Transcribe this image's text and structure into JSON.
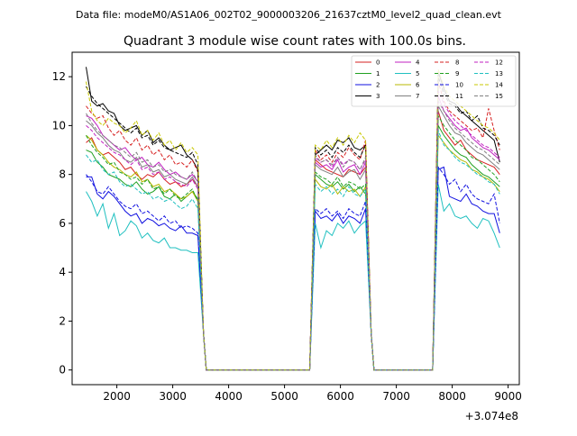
{
  "chart_data": {
    "type": "line",
    "suptitle": "Data file: modeM0/AS1A06_002T02_9000003206_21637cztM0_level2_quad_clean.evt",
    "title": "Quadrant 3 module wise count rates with 100.0s bins.",
    "xlabel": "",
    "ylabel": "",
    "x_offset_label": "+3.074e8",
    "xlim": [
      1200,
      9200
    ],
    "ylim": [
      -0.6,
      13.0
    ],
    "x_ticks": [
      2000,
      3000,
      4000,
      5000,
      6000,
      7000,
      8000,
      9000
    ],
    "x_tick_labels": [
      "2000",
      "3000",
      "4000",
      "5000",
      "6000",
      "7000",
      "8000",
      "9000"
    ],
    "y_ticks": [
      0,
      2,
      4,
      6,
      8,
      10,
      12
    ],
    "y_tick_labels": [
      "0",
      "2",
      "4",
      "6",
      "8",
      "10",
      "12"
    ],
    "grid": false,
    "legend_position": "top-right",
    "legend_columns": 4,
    "segment_starts": [
      1450,
      5550,
      7750
    ],
    "segment_ends": [
      3450,
      6450,
      8850
    ],
    "gap_level": 0,
    "series": [
      {
        "name": "0",
        "color": "#d62020",
        "dash": "solid",
        "seg1": [
          9.3,
          9.5,
          9.0,
          8.8,
          8.9,
          8.7,
          8.5,
          8.2,
          8.3,
          8.0,
          7.8,
          8.0,
          7.9,
          8.1,
          7.8,
          7.6,
          7.7,
          7.5,
          7.6,
          7.8,
          7.5
        ],
        "seg2": [
          8.6,
          8.4,
          8.2,
          8.1,
          8.0,
          7.9,
          8.2,
          8.1,
          8.0,
          8.3
        ],
        "seg3": [
          10.6,
          9.8,
          9.5,
          9.2,
          9.4,
          9.0,
          8.8,
          8.6,
          8.5,
          8.4,
          8.3,
          8.0
        ]
      },
      {
        "name": "1",
        "color": "#20a020",
        "dash": "solid",
        "seg1": [
          9.0,
          8.9,
          8.5,
          8.3,
          8.0,
          7.9,
          7.8,
          7.6,
          7.5,
          7.7,
          7.4,
          7.2,
          7.3,
          7.5,
          7.1,
          7.0,
          7.2,
          6.9,
          7.1,
          7.3,
          7.0
        ],
        "seg2": [
          8.0,
          7.8,
          7.6,
          7.5,
          7.7,
          7.4,
          7.6,
          7.3,
          7.5,
          7.2
        ],
        "seg3": [
          10.0,
          9.6,
          9.3,
          9.0,
          8.8,
          8.7,
          8.4,
          8.2,
          8.0,
          7.9,
          7.7,
          7.5
        ]
      },
      {
        "name": "2",
        "color": "#1010e0",
        "dash": "solid",
        "seg1": [
          7.9,
          7.9,
          7.2,
          7.0,
          7.3,
          7.1,
          6.8,
          6.5,
          6.3,
          6.4,
          6.0,
          6.2,
          6.1,
          5.9,
          6.0,
          5.8,
          5.7,
          5.9,
          5.6,
          5.6,
          5.5
        ],
        "seg2": [
          6.5,
          6.2,
          6.3,
          6.1,
          6.4,
          6.0,
          6.3,
          6.2,
          6.0,
          6.6
        ],
        "seg3": [
          8.2,
          8.3,
          7.1,
          7.0,
          6.9,
          7.2,
          6.8,
          6.7,
          6.5,
          6.4,
          6.4,
          5.6
        ]
      },
      {
        "name": "3",
        "color": "#000000",
        "dash": "solid",
        "seg1": [
          12.4,
          11.0,
          10.8,
          10.9,
          10.6,
          10.5,
          10.0,
          9.8,
          9.9,
          10.0,
          9.6,
          9.8,
          9.3,
          9.5,
          9.2,
          9.0,
          9.1,
          9.2,
          8.8,
          8.6,
          8.2
        ],
        "seg2": [
          8.8,
          9.0,
          9.2,
          9.0,
          9.4,
          9.3,
          9.5,
          9.1,
          9.0,
          9.2
        ],
        "seg3": [
          12.2,
          11.5,
          11.0,
          10.9,
          10.6,
          10.4,
          10.2,
          10.0,
          9.8,
          9.6,
          9.4,
          8.5
        ]
      },
      {
        "name": "4",
        "color": "#c020c0",
        "dash": "solid",
        "seg1": [
          10.4,
          10.3,
          10.0,
          9.6,
          9.4,
          9.2,
          9.0,
          9.1,
          8.8,
          8.6,
          8.7,
          8.4,
          8.3,
          8.5,
          8.2,
          8.0,
          8.1,
          7.9,
          7.8,
          8.0,
          7.7
        ],
        "seg2": [
          8.5,
          8.3,
          8.4,
          8.2,
          8.6,
          8.1,
          8.3,
          8.4,
          8.0,
          8.5
        ],
        "seg3": [
          11.2,
          10.6,
          10.3,
          10.0,
          9.8,
          9.9,
          9.5,
          9.3,
          9.1,
          9.0,
          8.8,
          8.6
        ]
      },
      {
        "name": "5",
        "color": "#20c0c0",
        "dash": "solid",
        "seg1": [
          7.3,
          6.9,
          6.3,
          6.8,
          5.8,
          6.4,
          5.5,
          5.7,
          6.1,
          5.9,
          5.4,
          5.6,
          5.3,
          5.2,
          5.4,
          5.0,
          5.0,
          4.9,
          4.9,
          4.8,
          4.8
        ],
        "seg2": [
          6.0,
          5.0,
          5.7,
          5.5,
          6.0,
          5.8,
          6.1,
          5.6,
          5.9,
          6.1
        ],
        "seg3": [
          7.6,
          6.5,
          6.8,
          6.3,
          6.2,
          6.3,
          6.0,
          5.8,
          6.2,
          6.1,
          5.6,
          5.0
        ]
      },
      {
        "name": "6",
        "color": "#b8b800",
        "dash": "solid",
        "seg1": [
          9.6,
          9.4,
          9.0,
          8.8,
          8.5,
          8.3,
          8.2,
          8.0,
          7.9,
          8.1,
          7.7,
          7.8,
          7.5,
          7.6,
          7.3,
          7.4,
          7.2,
          7.0,
          7.1,
          7.3,
          6.9
        ],
        "seg2": [
          7.8,
          7.5,
          7.4,
          7.6,
          7.2,
          7.5,
          7.3,
          7.4,
          7.1,
          7.5
        ],
        "seg3": [
          9.6,
          9.3,
          9.0,
          8.8,
          8.6,
          8.5,
          8.2,
          8.1,
          7.9,
          7.8,
          7.6,
          7.3
        ]
      },
      {
        "name": "7",
        "color": "#808080",
        "dash": "solid",
        "seg1": [
          10.2,
          10.0,
          9.7,
          9.5,
          9.2,
          9.0,
          8.9,
          8.6,
          8.5,
          8.7,
          8.3,
          8.4,
          8.1,
          8.2,
          7.9,
          8.0,
          7.8,
          7.7,
          7.6,
          7.9,
          7.5
        ],
        "seg2": [
          8.4,
          8.2,
          8.1,
          8.0,
          8.3,
          7.9,
          8.1,
          8.2,
          7.8,
          8.2
        ],
        "seg3": [
          10.8,
          10.4,
          10.0,
          9.7,
          9.6,
          9.3,
          9.1,
          8.9,
          8.8,
          8.6,
          8.4,
          8.2
        ]
      },
      {
        "name": "8",
        "color": "#d62020",
        "dash": "dashed",
        "seg1": [
          10.8,
          10.5,
          10.3,
          10.4,
          9.9,
          9.6,
          9.8,
          9.4,
          9.2,
          9.5,
          9.0,
          9.2,
          8.8,
          9.0,
          8.6,
          8.8,
          8.4,
          8.5,
          8.3,
          8.6,
          8.1
        ],
        "seg2": [
          9.0,
          8.6,
          8.8,
          8.5,
          8.9,
          8.7,
          9.1,
          8.8,
          8.6,
          9.4
        ],
        "seg3": [
          11.8,
          11.0,
          10.6,
          10.4,
          10.2,
          10.0,
          9.8,
          9.9,
          9.5,
          10.7,
          9.8,
          9.0
        ]
      },
      {
        "name": "9",
        "color": "#20a020",
        "dash": "dashed",
        "seg1": [
          9.6,
          9.2,
          8.9,
          8.7,
          8.4,
          8.5,
          8.1,
          8.0,
          7.8,
          7.9,
          7.6,
          7.8,
          7.4,
          7.5,
          7.2,
          7.4,
          7.1,
          7.0,
          7.2,
          7.4,
          6.9
        ],
        "seg2": [
          8.1,
          7.9,
          7.8,
          7.6,
          7.9,
          7.5,
          7.7,
          7.6,
          7.4,
          7.6
        ],
        "seg3": [
          10.4,
          10.0,
          9.7,
          9.4,
          9.2,
          9.0,
          8.7,
          8.6,
          8.4,
          8.2,
          8.0,
          7.7
        ]
      },
      {
        "name": "10",
        "color": "#1010e0",
        "dash": "dashed",
        "seg1": [
          8.0,
          7.7,
          7.3,
          7.2,
          7.5,
          7.2,
          6.9,
          6.7,
          6.6,
          6.8,
          6.4,
          6.5,
          6.3,
          6.1,
          6.3,
          6.0,
          6.1,
          5.8,
          5.9,
          5.8,
          5.6
        ],
        "seg2": [
          6.6,
          6.4,
          6.6,
          6.3,
          6.5,
          6.2,
          6.6,
          6.4,
          6.3,
          6.9
        ],
        "seg3": [
          8.3,
          8.0,
          7.6,
          7.8,
          7.3,
          7.6,
          7.2,
          7.0,
          6.9,
          6.8,
          7.2,
          6.0
        ]
      },
      {
        "name": "11",
        "color": "#000000",
        "dash": "dashed",
        "seg1": [
          11.6,
          11.2,
          10.9,
          10.7,
          10.5,
          10.3,
          10.1,
          9.9,
          9.7,
          9.9,
          9.5,
          9.6,
          9.2,
          9.4,
          9.1,
          9.0,
          8.9,
          8.8,
          8.7,
          8.9,
          8.4
        ],
        "seg2": [
          9.1,
          8.8,
          9.0,
          8.7,
          9.1,
          8.9,
          9.2,
          8.9,
          8.7,
          9.2
        ],
        "seg3": [
          12.0,
          11.3,
          10.9,
          10.8,
          10.5,
          10.6,
          10.2,
          10.4,
          9.9,
          9.8,
          9.6,
          9.2
        ]
      },
      {
        "name": "12",
        "color": "#c020c0",
        "dash": "dashed",
        "seg1": [
          10.0,
          9.8,
          9.5,
          9.3,
          9.1,
          8.9,
          8.8,
          8.6,
          8.4,
          8.6,
          8.2,
          8.3,
          8.0,
          8.1,
          7.8,
          7.9,
          7.7,
          7.6,
          7.5,
          7.8,
          7.4
        ],
        "seg2": [
          8.7,
          8.5,
          8.6,
          8.3,
          8.7,
          8.4,
          8.6,
          8.5,
          8.2,
          8.6
        ],
        "seg3": [
          11.4,
          10.9,
          10.5,
          10.2,
          10.0,
          9.8,
          9.6,
          9.4,
          9.2,
          9.1,
          8.9,
          8.7
        ]
      },
      {
        "name": "13",
        "color": "#20c0c0",
        "dash": "dashed",
        "seg1": [
          8.8,
          8.5,
          8.6,
          8.2,
          8.0,
          8.1,
          7.7,
          7.5,
          7.6,
          7.4,
          7.2,
          7.3,
          7.0,
          7.1,
          6.9,
          7.0,
          6.8,
          6.6,
          6.7,
          7.0,
          6.6
        ],
        "seg2": [
          7.6,
          7.3,
          7.5,
          7.2,
          7.4,
          7.1,
          7.5,
          7.2,
          7.1,
          7.4
        ],
        "seg3": [
          9.8,
          9.2,
          9.0,
          8.7,
          8.5,
          8.4,
          8.2,
          8.0,
          7.9,
          7.7,
          7.6,
          7.2
        ]
      },
      {
        "name": "14",
        "color": "#c8c800",
        "dash": "dashed",
        "seg1": [
          11.8,
          10.6,
          10.2,
          10.0,
          10.3,
          10.1,
          10.0,
          9.7,
          9.9,
          10.2,
          9.6,
          9.8,
          9.4,
          9.7,
          9.2,
          9.4,
          9.0,
          9.3,
          8.9,
          9.1,
          8.8
        ],
        "seg2": [
          9.2,
          9.0,
          9.4,
          9.1,
          9.5,
          9.2,
          9.6,
          9.3,
          9.7,
          9.4
        ],
        "seg3": [
          12.3,
          11.6,
          11.2,
          11.0,
          10.8,
          10.6,
          10.4,
          10.2,
          10.0,
          9.9,
          9.7,
          9.4
        ]
      },
      {
        "name": "15",
        "color": "#808080",
        "dash": "dashed",
        "seg1": [
          10.5,
          10.1,
          9.8,
          9.6,
          9.4,
          9.2,
          9.1,
          8.9,
          8.7,
          8.9,
          8.5,
          8.6,
          8.3,
          8.4,
          8.1,
          8.2,
          8.0,
          7.9,
          7.8,
          8.1,
          7.7
        ],
        "seg2": [
          8.8,
          8.5,
          8.6,
          8.4,
          8.7,
          8.3,
          8.6,
          8.5,
          8.2,
          8.7
        ],
        "seg3": [
          11.0,
          10.6,
          10.2,
          9.9,
          9.7,
          9.5,
          9.3,
          9.1,
          9.0,
          8.8,
          8.6,
          8.4
        ]
      }
    ]
  }
}
